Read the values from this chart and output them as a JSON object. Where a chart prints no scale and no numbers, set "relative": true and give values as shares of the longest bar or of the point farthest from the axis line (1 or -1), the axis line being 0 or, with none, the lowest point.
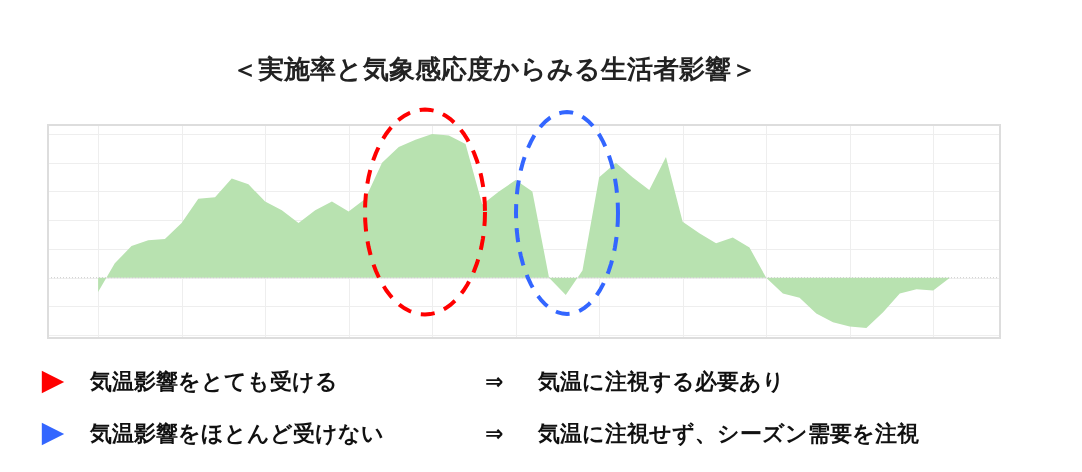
{
  "chart_data": {
    "type": "area",
    "title": "＜実施率と気象感応度からみる生活者影響＞",
    "relative": true,
    "grid": true,
    "categories": [
      null,
      null,
      null,
      null,
      null,
      null,
      null,
      null,
      null,
      null,
      null,
      null,
      null,
      null,
      null,
      null,
      null,
      null,
      null,
      null,
      null,
      null,
      null,
      null,
      null,
      null,
      null,
      null,
      null,
      null,
      null,
      null,
      null,
      null,
      null,
      null,
      null,
      null,
      null,
      null,
      null,
      null,
      null,
      null,
      null,
      null,
      null,
      null,
      null,
      null,
      null,
      null
    ],
    "series": [
      {
        "color": "#b8e2b0",
        "values": [
          -0.1,
          0.1,
          0.22,
          0.26,
          0.27,
          0.38,
          0.55,
          0.56,
          0.69,
          0.65,
          0.53,
          0.47,
          0.38,
          0.47,
          0.53,
          0.46,
          0.55,
          0.8,
          0.91,
          0.96,
          1.0,
          0.99,
          0.93,
          0.51,
          0.6,
          0.68,
          0.6,
          0.0,
          -0.12,
          0.05,
          0.7,
          0.8,
          0.7,
          0.61,
          0.84,
          0.39,
          0.31,
          0.24,
          0.28,
          0.21,
          0.0,
          -0.11,
          -0.14,
          -0.25,
          -0.31,
          -0.34,
          -0.35,
          -0.24,
          -0.11,
          -0.08,
          -0.09,
          0.0
        ]
      }
    ],
    "ref_lines": [
      {
        "axis": "y",
        "value": 0,
        "color": "#cccccc",
        "line_style": "dotted"
      }
    ],
    "annotations": [
      "気温影響をとても受ける",
      "⇒",
      "気温に注視する必要あり",
      "気温影響をほとんど受けない",
      "⇒",
      "気温に注視せず、シーズン需要を注視"
    ]
  }
}
